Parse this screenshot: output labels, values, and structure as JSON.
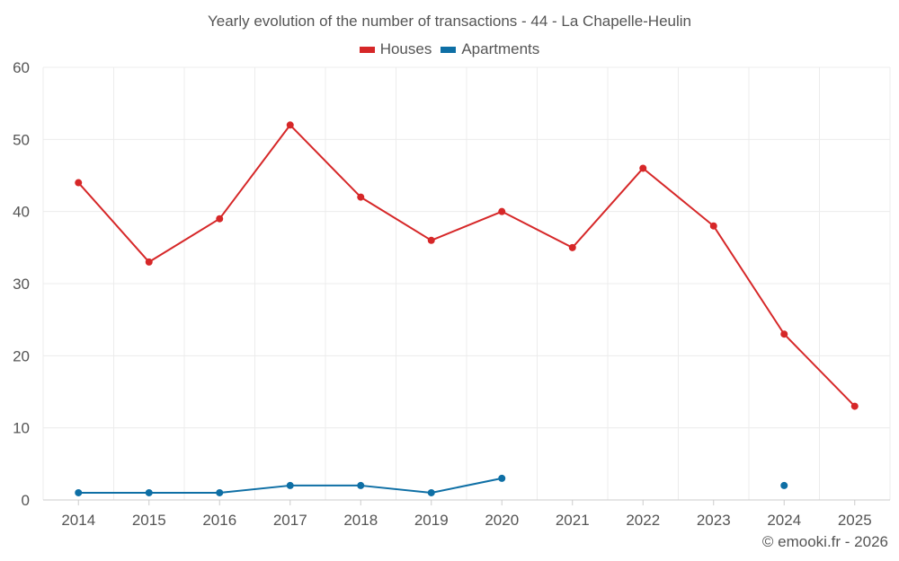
{
  "chart_data": {
    "type": "line",
    "title": "Yearly evolution of the number of transactions - 44 - La Chapelle-Heulin",
    "categories": [
      "2014",
      "2015",
      "2016",
      "2017",
      "2018",
      "2019",
      "2020",
      "2021",
      "2022",
      "2023",
      "2024",
      "2025"
    ],
    "series": [
      {
        "name": "Houses",
        "color": "#d62728",
        "values": [
          44,
          33,
          39,
          52,
          42,
          36,
          40,
          35,
          46,
          38,
          23,
          13
        ]
      },
      {
        "name": "Apartments",
        "color": "#0e6fa5",
        "values": [
          1,
          1,
          1,
          2,
          2,
          1,
          3,
          null,
          null,
          null,
          2,
          null
        ]
      }
    ],
    "ylim": [
      0,
      60
    ],
    "yticks": [
      "0",
      "10",
      "20",
      "30",
      "40",
      "50",
      "60"
    ],
    "grid": true,
    "legend_position": "top-center"
  },
  "credit": "© emooki.fr - 2026"
}
